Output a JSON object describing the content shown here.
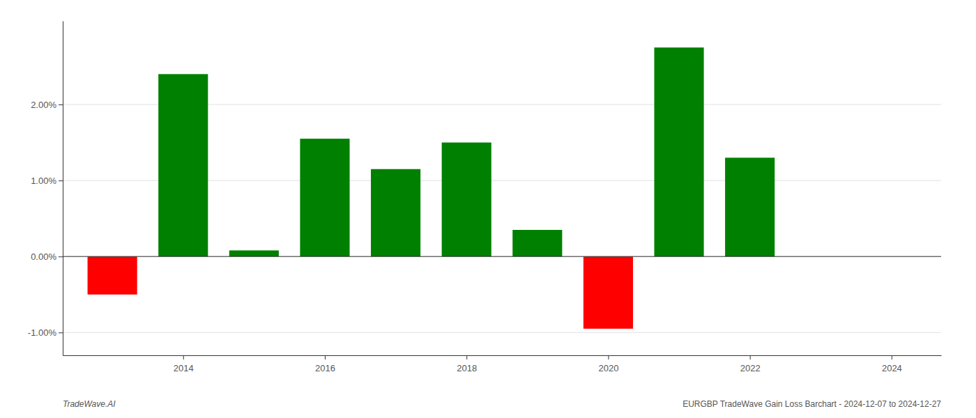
{
  "chart_data": {
    "type": "bar",
    "x": [
      2013,
      2014,
      2015,
      2016,
      2017,
      2018,
      2019,
      2020,
      2021,
      2022,
      2023
    ],
    "values": [
      -0.005,
      0.024,
      0.0008,
      0.0155,
      0.0115,
      0.015,
      0.0035,
      -0.0095,
      0.0275,
      0.013,
      0.0
    ],
    "colors": [
      "#ff0000",
      "#008000",
      "#008000",
      "#008000",
      "#008000",
      "#008000",
      "#008000",
      "#ff0000",
      "#008000",
      "#008000",
      "#008000"
    ],
    "xlim": [
      2012.3,
      2024.7
    ],
    "xticks": [
      2014,
      2016,
      2018,
      2020,
      2022,
      2024
    ],
    "ylim": [
      -0.013,
      0.031
    ],
    "yticks": [
      {
        "value": -0.01,
        "label": "-1.00%"
      },
      {
        "value": 0.0,
        "label": "0.00%"
      },
      {
        "value": 0.01,
        "label": "1.00%"
      },
      {
        "value": 0.02,
        "label": "2.00%"
      }
    ],
    "grid": true,
    "annotations": [
      "TradeWave.AI",
      "EURGBP TradeWave Gain Loss Barchart - 2024-12-07 to 2024-12-27"
    ]
  }
}
